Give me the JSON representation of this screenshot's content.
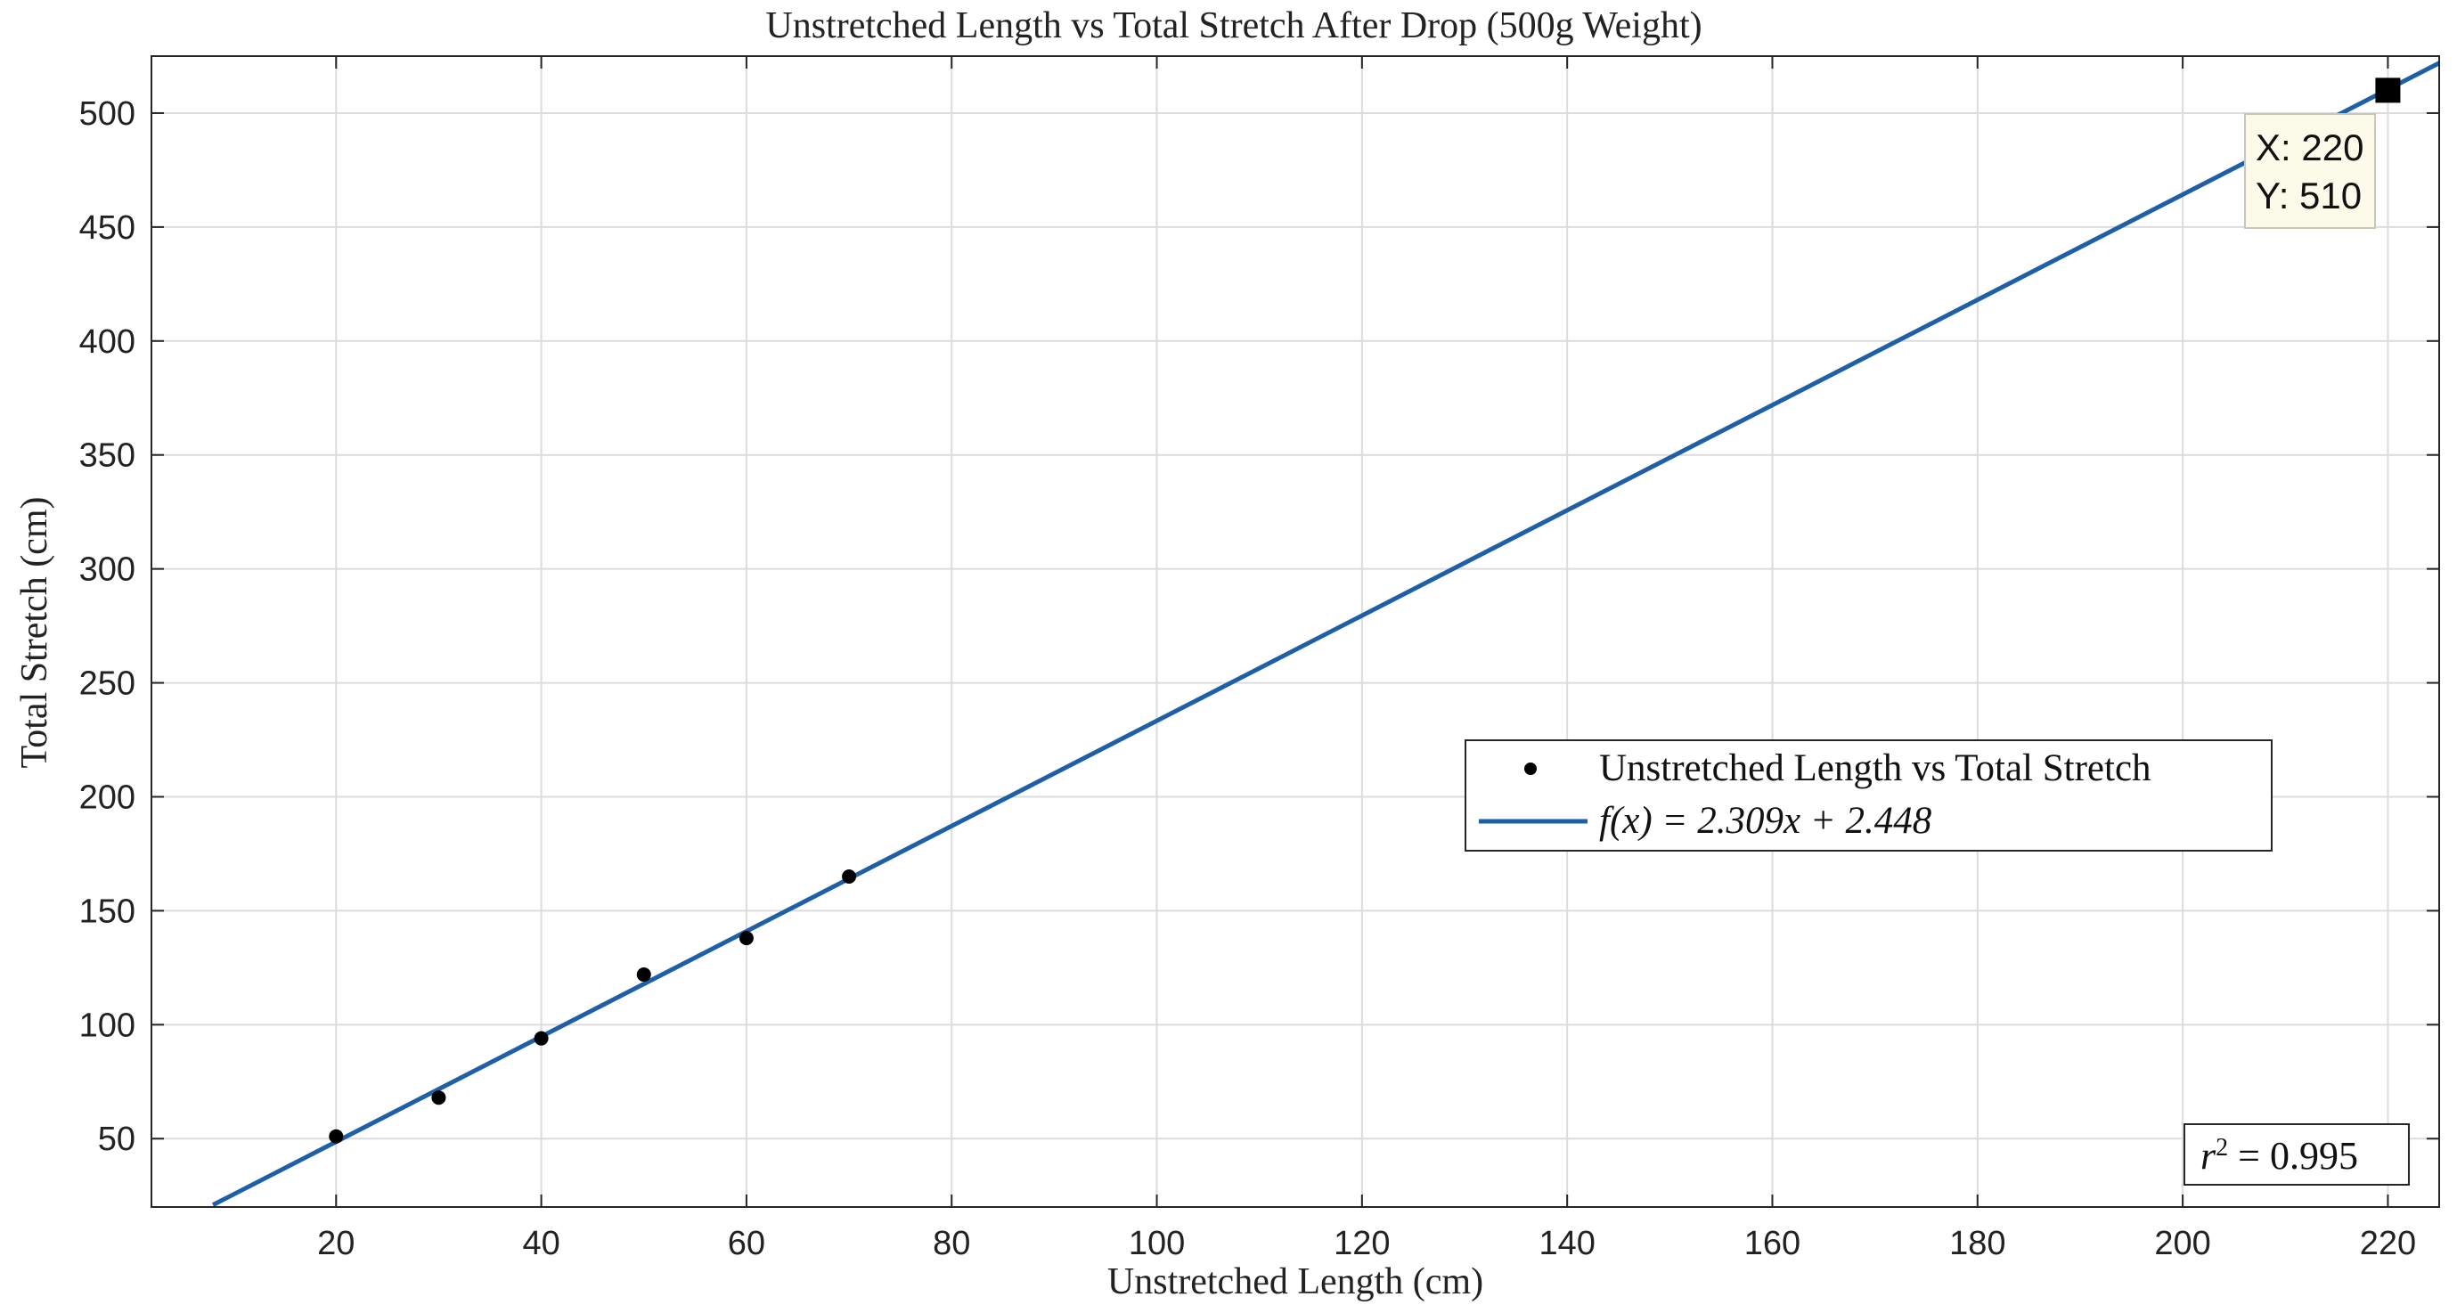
{
  "chart_data": {
    "type": "scatter",
    "title": "Unstretched Length vs Total Stretch After Drop (500g Weight)",
    "xlabel": "Unstretched Length (cm)",
    "ylabel": "Total Stretch (cm)",
    "xlim": [
      2,
      225
    ],
    "ylim": [
      20,
      525
    ],
    "xticks": [
      20,
      40,
      60,
      80,
      100,
      120,
      140,
      160,
      180,
      200,
      220
    ],
    "yticks": [
      50,
      100,
      150,
      200,
      250,
      300,
      350,
      400,
      450,
      500
    ],
    "grid": true,
    "series": [
      {
        "name": "Unstretched Length vs Total Stretch",
        "kind": "scatter",
        "color": "#000000",
        "x": [
          20,
          30,
          40,
          50,
          60,
          70
        ],
        "y": [
          51,
          68,
          94,
          122,
          138,
          165
        ]
      },
      {
        "name": "f(x) = 2.309x + 2.448",
        "kind": "line",
        "color": "#1f5fa6",
        "slope": 2.309,
        "intercept": 2.448,
        "x": [
          8,
          225
        ],
        "y": [
          20.92,
          521.97
        ]
      }
    ],
    "legend": {
      "placement": "center-right",
      "entries": [
        "Unstretched Length vs Total Stretch",
        "f(x) = 2.309x  + 2.448"
      ]
    },
    "datatip": {
      "x": 220,
      "y": 510,
      "x_label": "X: 220",
      "y_label": "Y: 510"
    },
    "annotation": {
      "r2_prefix": "r",
      "r2_sup": "2",
      "r2_value": " = 0.995"
    }
  }
}
